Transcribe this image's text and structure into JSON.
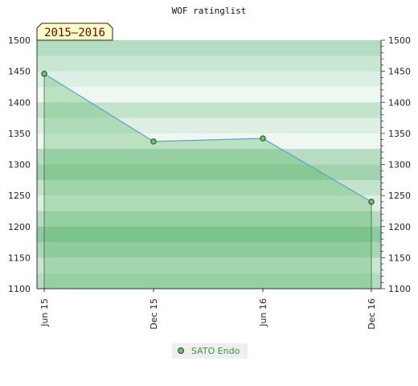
{
  "chart_data": {
    "type": "area",
    "title": "WOF ratinglist",
    "season_badge": "2015–2016",
    "x": [
      "Jun 15",
      "Dec 15",
      "Jun 16",
      "Dec 16"
    ],
    "series": [
      {
        "name": "SATO Endo",
        "values": [
          1446,
          1337,
          1342,
          1240
        ]
      }
    ],
    "ylim": [
      1100,
      1500
    ],
    "yticks": [
      1100,
      1150,
      1200,
      1250,
      1300,
      1350,
      1400,
      1450,
      1500
    ],
    "y_axis_both_sides": true,
    "legend_position": "bottom-center",
    "colors": {
      "line": "#5aa0d0",
      "marker_fill": "#6fbf6f",
      "marker_stroke": "#1e4a1e",
      "area_fill": "#5fb86b",
      "badge_fill": "#ffffc8",
      "legend_text": "#3a9a3a"
    }
  }
}
